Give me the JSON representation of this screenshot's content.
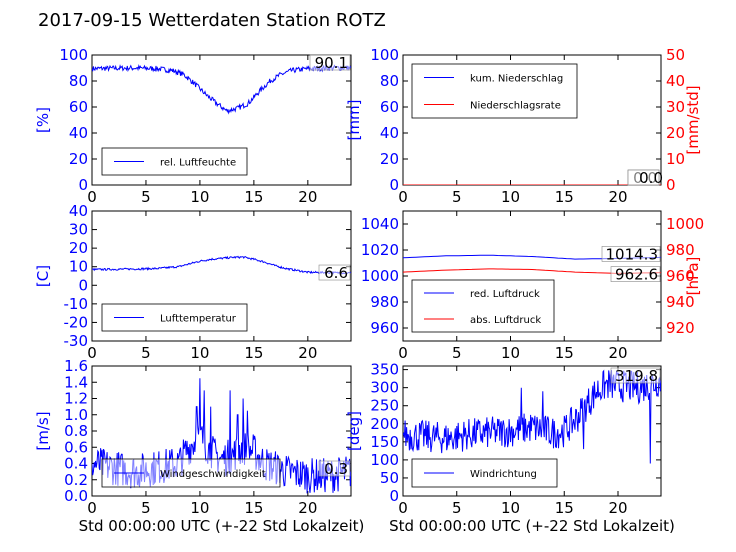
{
  "title": "2017-09-15 Wetterdaten Station ROTZ",
  "colors": {
    "left_axis": "#0000ff",
    "right_axis": "#ff0000",
    "line_blue": "#0000ff",
    "line_red": "#ff0000"
  },
  "chart_data": [
    {
      "id": "humidity",
      "type": "line",
      "xlabel": "",
      "ylabel": "[%]",
      "xlim": [
        0,
        24
      ],
      "ylim": [
        0,
        100
      ],
      "xticks": [
        0,
        5,
        10,
        15,
        20
      ],
      "yticks": [
        0,
        20,
        40,
        60,
        80,
        100
      ],
      "legend_placement": "lower-left",
      "last_value_label": "90.1",
      "series": [
        {
          "name": "rel. Luftfeuchte",
          "color": "#0000ff",
          "noise": 2,
          "x": [
            0,
            2,
            4,
            6,
            7.5,
            8.5,
            9.5,
            10.5,
            11.5,
            12.5,
            13.5,
            14.5,
            15.5,
            16.5,
            17.5,
            18.5,
            20,
            22,
            24
          ],
          "y": [
            89.5,
            89.8,
            90,
            89.5,
            88,
            85,
            78,
            70,
            63,
            57,
            59,
            63,
            72,
            80,
            85,
            88,
            89.5,
            90,
            90.1
          ]
        }
      ]
    },
    {
      "id": "precip",
      "type": "line",
      "xlabel": "",
      "ylabel": "[mm]",
      "ylabel_right": "[mm/std]",
      "xlim": [
        0,
        24
      ],
      "ylim": [
        0,
        100
      ],
      "ylim_right": [
        0,
        50
      ],
      "xticks": [
        0,
        5,
        10,
        15,
        20
      ],
      "yticks": [
        0,
        20,
        40,
        60,
        80,
        100
      ],
      "yticks_right": [
        0,
        10,
        20,
        30,
        40,
        50
      ],
      "legend_placement": "upper-left",
      "last_value_labels": [
        "0.0",
        "0.0"
      ],
      "series": [
        {
          "name": "kum. Niederschlag",
          "color": "#0000ff",
          "x": [
            0,
            24
          ],
          "y": [
            0,
            0
          ]
        },
        {
          "name": "Niederschlagsrate",
          "color": "#ff0000",
          "axis": "right",
          "x": [
            0,
            24
          ],
          "y": [
            0,
            0
          ]
        }
      ]
    },
    {
      "id": "temperature",
      "type": "line",
      "xlabel": "",
      "ylabel": "[C]",
      "xlim": [
        0,
        24
      ],
      "ylim": [
        -30,
        40
      ],
      "xticks": [
        0,
        5,
        10,
        15,
        20
      ],
      "yticks": [
        -30,
        -20,
        -10,
        0,
        10,
        20,
        30,
        40
      ],
      "legend_placement": "lower-left",
      "last_value_label": "6.6",
      "series": [
        {
          "name": "Lufttemperatur",
          "color": "#0000ff",
          "noise": 0.5,
          "x": [
            0,
            2,
            4,
            6,
            8,
            9,
            10,
            11,
            12,
            13,
            14,
            15,
            16,
            17,
            18,
            19,
            20,
            22,
            24
          ],
          "y": [
            8.5,
            8.6,
            8.8,
            9,
            10,
            11.5,
            13,
            14,
            14.5,
            15,
            15.2,
            14,
            12.5,
            10.5,
            9,
            8,
            7,
            6.8,
            6.6
          ]
        }
      ]
    },
    {
      "id": "pressure",
      "type": "line",
      "xlabel": "",
      "ylabel": "",
      "ylabel_right": "[hPa]",
      "xlim": [
        0,
        24
      ],
      "ylim": [
        950,
        1050
      ],
      "ylim_right": [
        910,
        1010
      ],
      "xticks": [
        0,
        5,
        10,
        15,
        20
      ],
      "yticks": [
        960,
        980,
        1000,
        1020,
        1040
      ],
      "yticks_right": [
        920,
        940,
        960,
        980,
        1000
      ],
      "legend_placement": "lower-left",
      "last_value_labels": [
        "1014.3",
        "962.6"
      ],
      "series": [
        {
          "name": "red. Luftdruck",
          "color": "#0000ff",
          "x": [
            0,
            4,
            8,
            12,
            16,
            20,
            24
          ],
          "y": [
            1014,
            1015.5,
            1016,
            1015,
            1013,
            1013.5,
            1014.3
          ]
        },
        {
          "name": "abs. Luftdruck",
          "color": "#ff0000",
          "x": [
            0,
            4,
            8,
            12,
            16,
            20,
            24
          ],
          "y": [
            1003,
            1004.5,
            1005.5,
            1005,
            1003,
            1002,
            1002.6
          ]
        }
      ]
    },
    {
      "id": "windspeed",
      "type": "line",
      "xlabel": "Std 00:00:00 UTC (+-22 Std Lokalzeit)",
      "ylabel": "[m/s]",
      "xlim": [
        0,
        24
      ],
      "ylim": [
        0,
        1.6
      ],
      "xticks": [
        0,
        5,
        10,
        15,
        20
      ],
      "yticks": [
        0,
        0.2,
        0.4,
        0.6,
        0.8,
        1.0,
        1.2,
        1.4,
        1.6
      ],
      "legend_placement": "lower-left",
      "last_value_label": "0.3",
      "series": [
        {
          "name": "Windgeschwindigkeit",
          "color": "#0000ff",
          "noise": 0.22,
          "x": [
            0,
            2,
            4,
            6,
            8,
            9,
            10,
            11,
            12,
            13,
            14,
            15,
            16,
            17,
            18,
            20,
            22,
            24
          ],
          "y": [
            0.4,
            0.35,
            0.3,
            0.35,
            0.4,
            0.6,
            0.75,
            0.55,
            0.45,
            0.5,
            0.6,
            0.55,
            0.4,
            0.35,
            0.3,
            0.25,
            0.25,
            0.3
          ],
          "spikes": [
            [
              10,
              1.45
            ],
            [
              10.4,
              1.3
            ],
            [
              11,
              1.1
            ],
            [
              12.8,
              1.3
            ],
            [
              14,
              1.2
            ],
            [
              14.4,
              1.05
            ],
            [
              13.5,
              1.0
            ],
            [
              9.7,
              1.1
            ]
          ]
        }
      ]
    },
    {
      "id": "winddir",
      "type": "line",
      "xlabel": "Std 00:00:00 UTC (+-22 Std Lokalzeit)",
      "ylabel": "[deg]",
      "xlim": [
        0,
        24
      ],
      "ylim": [
        0,
        360
      ],
      "xticks": [
        0,
        5,
        10,
        15,
        20
      ],
      "yticks": [
        0,
        50,
        100,
        150,
        200,
        250,
        300,
        350
      ],
      "legend_placement": "lower-left",
      "last_value_label": "319.8",
      "series": [
        {
          "name": "Windrichtung",
          "color": "#0000ff",
          "noise": 45,
          "x": [
            0,
            2,
            4,
            6,
            8,
            10,
            12,
            14,
            15,
            16,
            17,
            18,
            19,
            20,
            22,
            24
          ],
          "y": [
            170,
            165,
            160,
            170,
            175,
            180,
            190,
            175,
            180,
            210,
            250,
            290,
            310,
            305,
            300,
            319.8
          ],
          "spikes": [
            [
              22.5,
              50
            ],
            [
              23,
              90
            ],
            [
              16.8,
              130
            ],
            [
              13,
              290
            ],
            [
              11,
              300
            ]
          ]
        }
      ]
    }
  ]
}
